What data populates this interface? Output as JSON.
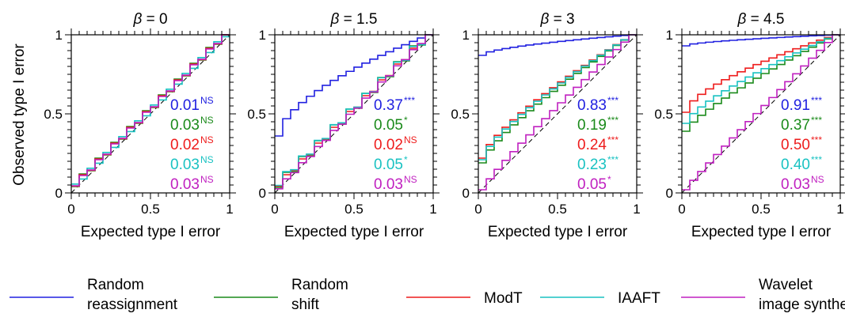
{
  "figure": {
    "ylabel": "Observed type I error",
    "xlabel": "Expected type I error",
    "beta_symbol": "β",
    "tick_labels": {
      "x": [
        "0",
        "0.5",
        "1"
      ],
      "y": [
        "0",
        "0.5",
        "1"
      ]
    }
  },
  "legend": [
    {
      "key": "random_reassignment",
      "line1": "Random",
      "line2": "reassignment",
      "color": "#2020e0"
    },
    {
      "key": "random_shift",
      "line1": "Random",
      "line2": "shift",
      "color": "#1a8a1a"
    },
    {
      "key": "modt",
      "line1": "ModT",
      "line2": "",
      "color": "#ee1c1c"
    },
    {
      "key": "iaaft",
      "line1": "IAAFT",
      "line2": "",
      "color": "#19c2c2"
    },
    {
      "key": "wavelet",
      "line1": "Wavelet",
      "line2": "image synthesis",
      "color": "#c020c0"
    }
  ],
  "chart_data": [
    {
      "type": "line",
      "title": "= 0",
      "beta": "0",
      "xlabel": "Expected type I error",
      "ylabel": "Observed type I error",
      "xlim": [
        0,
        1
      ],
      "ylim": [
        0,
        1
      ],
      "series": [
        {
          "key": "random_reassignment",
          "start": 0.05,
          "end": 1.0,
          "shape": 1.0,
          "jitter": 0.012
        },
        {
          "key": "random_shift",
          "start": 0.05,
          "end": 1.0,
          "shape": 1.0,
          "jitter": 0.02
        },
        {
          "key": "modt",
          "start": 0.05,
          "end": 1.0,
          "shape": 1.0,
          "jitter": 0.015
        },
        {
          "key": "iaaft",
          "start": 0.05,
          "end": 1.0,
          "shape": 1.0,
          "jitter": -0.012
        },
        {
          "key": "wavelet",
          "start": 0.05,
          "end": 1.0,
          "shape": 1.0,
          "jitter": 0.01
        }
      ],
      "annotations": [
        {
          "key": "random_reassignment",
          "value": "0.01",
          "sig": "NS"
        },
        {
          "key": "random_shift",
          "value": "0.03",
          "sig": "NS"
        },
        {
          "key": "modt",
          "value": "0.02",
          "sig": "NS"
        },
        {
          "key": "iaaft",
          "value": "0.03",
          "sig": "NS"
        },
        {
          "key": "wavelet",
          "value": "0.03",
          "sig": "NS"
        }
      ]
    },
    {
      "type": "line",
      "title": "= 1.5",
      "beta": "1.5",
      "xlabel": "Expected type I error",
      "ylabel": "Observed type I error",
      "xlim": [
        0,
        1
      ],
      "ylim": [
        0,
        1
      ],
      "series": [
        {
          "key": "random_reassignment",
          "start": 0.36,
          "end": 1.0,
          "shape": 0.6,
          "jitter": 0.0
        },
        {
          "key": "random_shift",
          "start": 0.05,
          "end": 1.0,
          "shape": 1.0,
          "jitter": 0.03
        },
        {
          "key": "modt",
          "start": 0.05,
          "end": 1.0,
          "shape": 1.0,
          "jitter": 0.015
        },
        {
          "key": "iaaft",
          "start": 0.06,
          "end": 1.0,
          "shape": 1.0,
          "jitter": 0.025
        },
        {
          "key": "wavelet",
          "start": 0.03,
          "end": 1.0,
          "shape": 1.0,
          "jitter": 0.008
        }
      ],
      "annotations": [
        {
          "key": "random_reassignment",
          "value": "0.37",
          "sig": "***"
        },
        {
          "key": "random_shift",
          "value": "0.05",
          "sig": "*"
        },
        {
          "key": "modt",
          "value": "0.02",
          "sig": "NS"
        },
        {
          "key": "iaaft",
          "value": "0.05",
          "sig": "*"
        },
        {
          "key": "wavelet",
          "value": "0.03",
          "sig": "NS"
        }
      ]
    },
    {
      "type": "line",
      "title": "= 3",
      "beta": "3",
      "xlabel": "Expected type I error",
      "ylabel": "Observed type I error",
      "xlim": [
        0,
        1
      ],
      "ylim": [
        0,
        1
      ],
      "series": [
        {
          "key": "random_reassignment",
          "start": 0.87,
          "end": 1.0,
          "shape": 0.6,
          "jitter": 0.0
        },
        {
          "key": "random_shift",
          "start": 0.19,
          "end": 1.0,
          "shape": 0.78,
          "jitter": 0.0
        },
        {
          "key": "modt",
          "start": 0.22,
          "end": 1.0,
          "shape": 0.75,
          "jitter": 0.0
        },
        {
          "key": "iaaft",
          "start": 0.21,
          "end": 1.0,
          "shape": 0.76,
          "jitter": 0.0
        },
        {
          "key": "wavelet",
          "start": 0.02,
          "end": 1.0,
          "shape": 0.9,
          "jitter": 0.0
        }
      ],
      "annotations": [
        {
          "key": "random_reassignment",
          "value": "0.83",
          "sig": "***"
        },
        {
          "key": "random_shift",
          "value": "0.19",
          "sig": "***"
        },
        {
          "key": "modt",
          "value": "0.24",
          "sig": "***"
        },
        {
          "key": "iaaft",
          "value": "0.23",
          "sig": "***"
        },
        {
          "key": "wavelet",
          "value": "0.05",
          "sig": "*"
        }
      ]
    },
    {
      "type": "line",
      "title": "= 4.5",
      "beta": "4.5",
      "xlabel": "Expected type I error",
      "ylabel": "Observed type I error",
      "xlim": [
        0,
        1
      ],
      "ylim": [
        0,
        1
      ],
      "series": [
        {
          "key": "random_reassignment",
          "start": 0.93,
          "end": 1.0,
          "shape": 0.6,
          "jitter": 0.0
        },
        {
          "key": "random_shift",
          "start": 0.39,
          "end": 1.0,
          "shape": 0.8,
          "jitter": 0.0
        },
        {
          "key": "modt",
          "start": 0.51,
          "end": 1.0,
          "shape": 0.65,
          "jitter": 0.0
        },
        {
          "key": "iaaft",
          "start": 0.44,
          "end": 1.0,
          "shape": 0.75,
          "jitter": 0.0
        },
        {
          "key": "wavelet",
          "start": 0.02,
          "end": 1.0,
          "shape": 0.95,
          "jitter": 0.0
        }
      ],
      "annotations": [
        {
          "key": "random_reassignment",
          "value": "0.91",
          "sig": "***"
        },
        {
          "key": "random_shift",
          "value": "0.37",
          "sig": "***"
        },
        {
          "key": "modt",
          "value": "0.50",
          "sig": "***"
        },
        {
          "key": "iaaft",
          "value": "0.40",
          "sig": "***"
        },
        {
          "key": "wavelet",
          "value": "0.03",
          "sig": "NS"
        }
      ]
    }
  ]
}
